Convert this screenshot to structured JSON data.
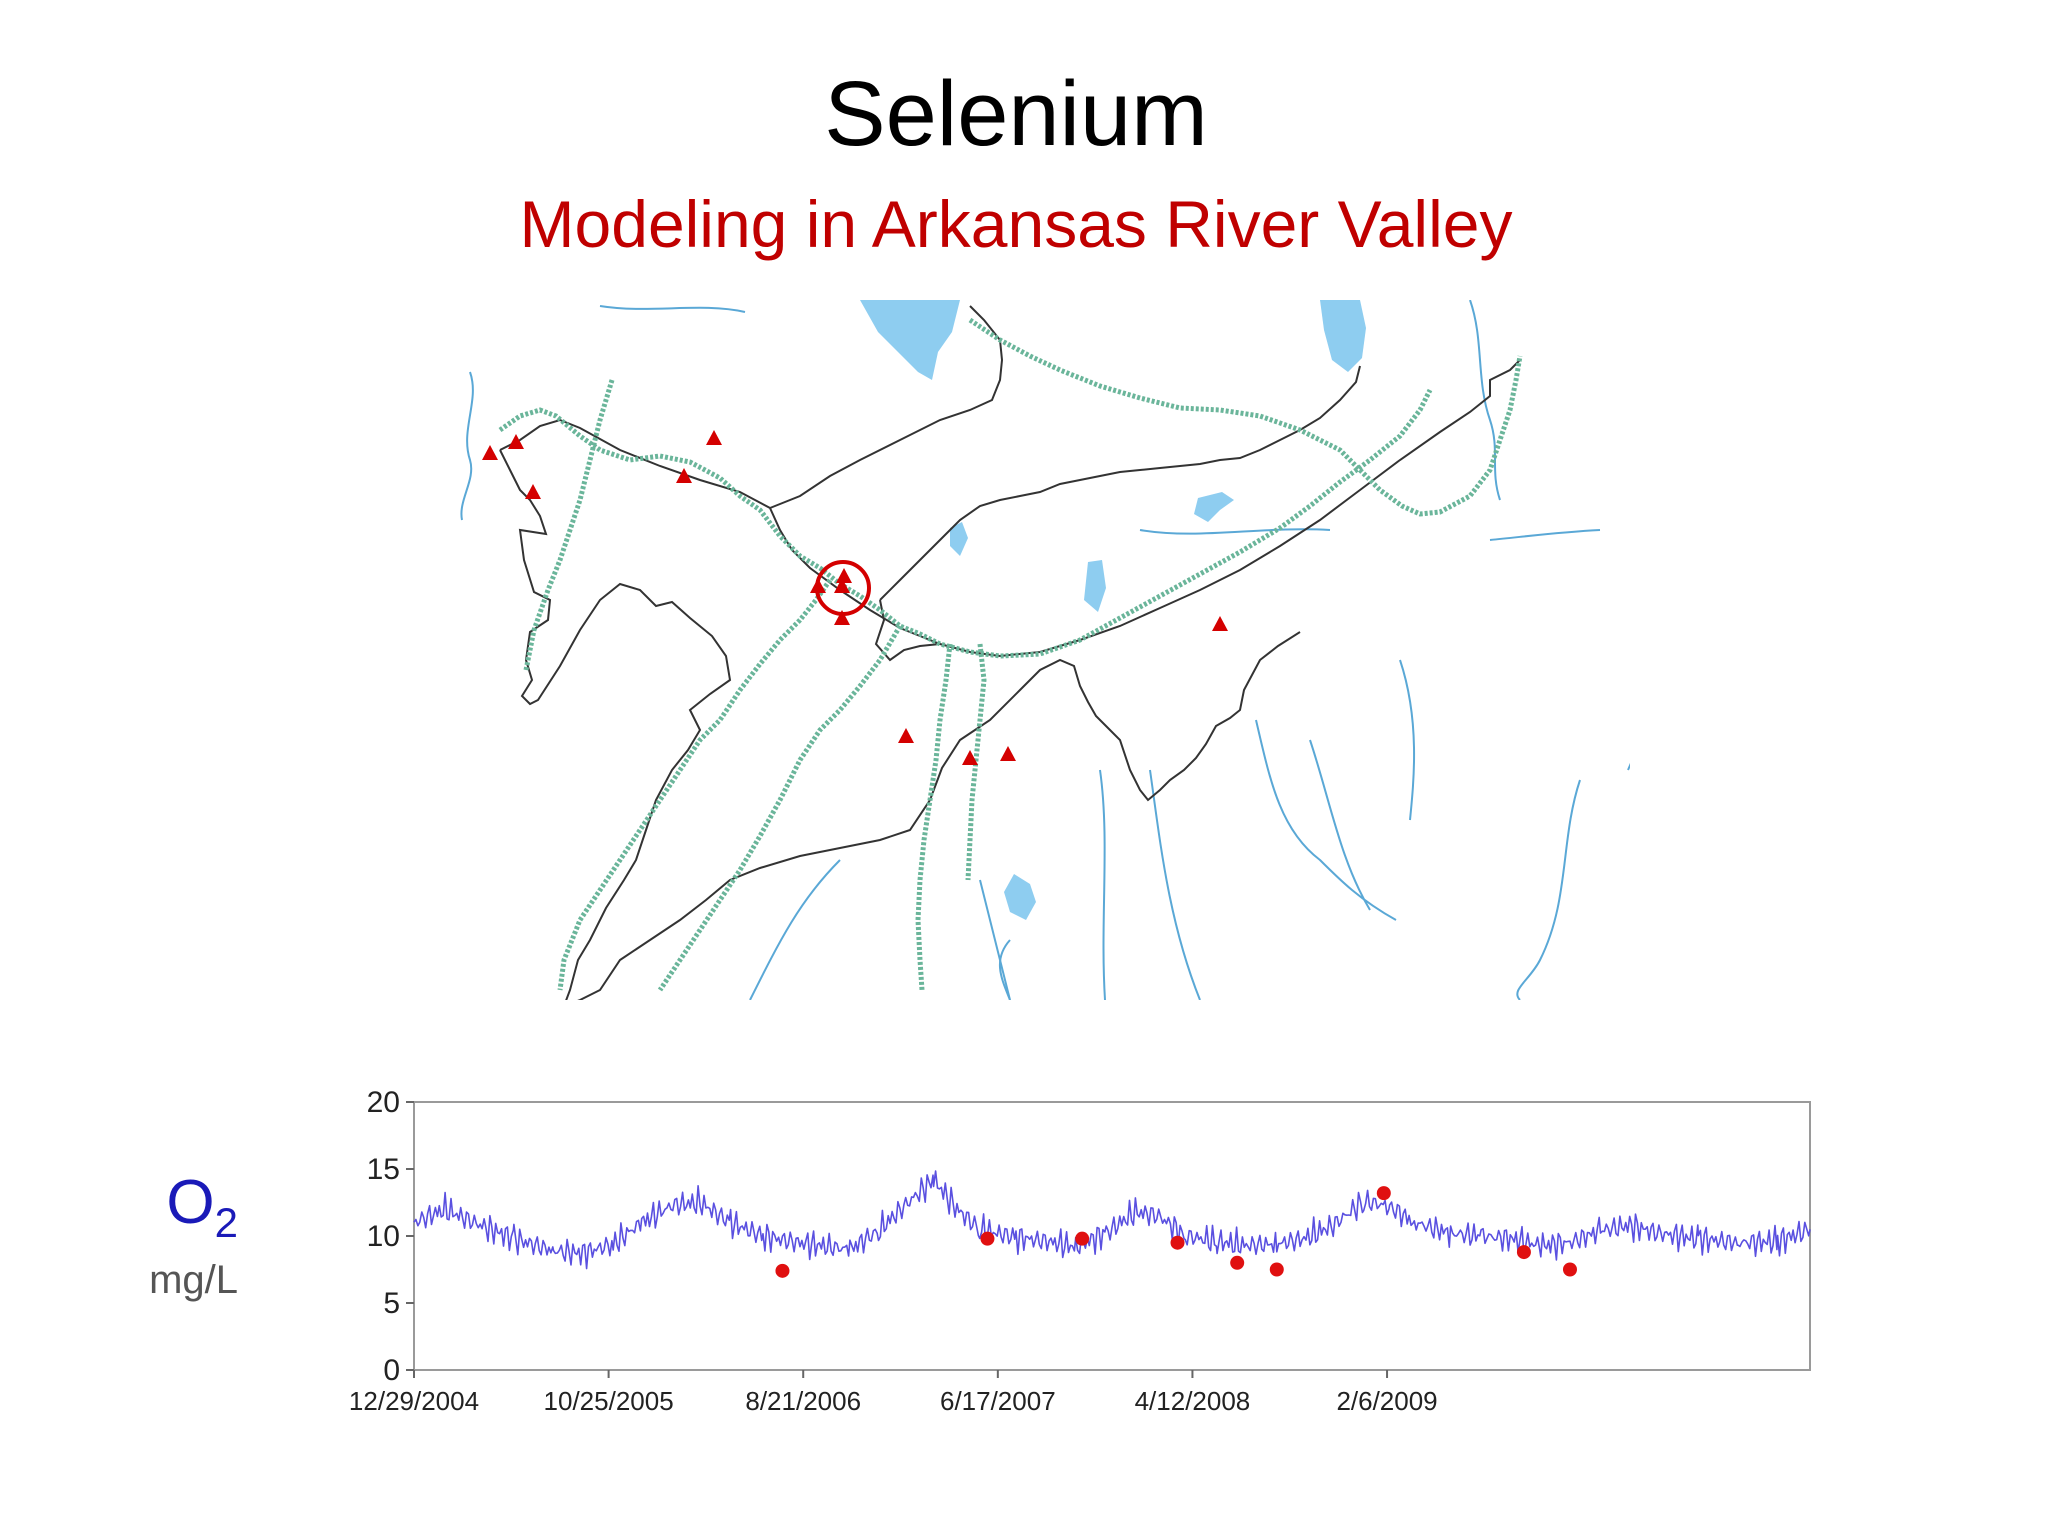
{
  "slide": {
    "title": "Selenium",
    "subtitle": "Modeling in Arkansas River Valley",
    "subtitle_color": "#c00000",
    "o2_main": "O",
    "o2_sub": "2",
    "o2_color": "#1a1ab8",
    "unit": "mg/L"
  },
  "map": {
    "river_color": "#5aa8d6",
    "lake_color": "#8ecdf0",
    "boundary_color": "#333333",
    "model_channel_color": "#6ab59a",
    "marker_color": "#d40000"
  },
  "chart_data": {
    "type": "line",
    "title": "",
    "xlabel": "",
    "ylabel": "",
    "ylim": [
      0,
      20
    ],
    "yticks": [
      0,
      5,
      10,
      15,
      20
    ],
    "xlim": [
      "2004-12-29",
      "2010-11-20"
    ],
    "xticks": [
      {
        "date": "2004-12-29",
        "label": "12/29/2004"
      },
      {
        "date": "2005-10-25",
        "label": "10/25/2005"
      },
      {
        "date": "2006-08-21",
        "label": "8/21/2006"
      },
      {
        "date": "2007-06-17",
        "label": "6/17/2007"
      },
      {
        "date": "2008-04-12",
        "label": "4/12/2008"
      },
      {
        "date": "2009-02-06",
        "label": "2/6/2009"
      }
    ],
    "grid": false,
    "series": [
      {
        "kind": "line",
        "color": "#5a50e0",
        "points": [
          [
            "2004-12-29",
            11.0
          ],
          [
            "2005-02-15",
            12.0
          ],
          [
            "2005-04-01",
            11.0
          ],
          [
            "2005-06-01",
            9.8
          ],
          [
            "2005-08-01",
            8.9
          ],
          [
            "2005-09-15",
            8.7
          ],
          [
            "2005-11-01",
            9.4
          ],
          [
            "2005-12-15",
            11.0
          ],
          [
            "2006-02-01",
            12.3
          ],
          [
            "2006-03-15",
            12.5
          ],
          [
            "2006-05-01",
            11.0
          ],
          [
            "2006-06-20",
            10.0
          ],
          [
            "2006-08-01",
            9.6
          ],
          [
            "2006-09-15",
            9.3
          ],
          [
            "2006-11-01",
            9.0
          ],
          [
            "2006-12-15",
            10.4
          ],
          [
            "2007-02-01",
            12.6
          ],
          [
            "2007-03-10",
            14.2
          ],
          [
            "2007-04-15",
            12.0
          ],
          [
            "2007-05-20",
            10.5
          ],
          [
            "2007-07-15",
            9.9
          ],
          [
            "2007-09-01",
            9.6
          ],
          [
            "2007-10-15",
            9.2
          ],
          [
            "2007-12-01",
            10.2
          ],
          [
            "2008-01-15",
            11.8
          ],
          [
            "2008-02-20",
            11.5
          ],
          [
            "2008-04-01",
            10.0
          ],
          [
            "2008-05-20",
            9.6
          ],
          [
            "2008-07-01",
            9.3
          ],
          [
            "2008-08-20",
            9.4
          ],
          [
            "2008-10-01",
            9.8
          ],
          [
            "2008-11-15",
            10.8
          ],
          [
            "2009-01-01",
            12.6
          ],
          [
            "2009-02-10",
            12.2
          ],
          [
            "2009-03-20",
            11.0
          ],
          [
            "2009-05-15",
            10.2
          ],
          [
            "2009-07-01",
            10.0
          ],
          [
            "2009-08-15",
            9.8
          ],
          [
            "2009-10-01",
            9.3
          ],
          [
            "2009-11-15",
            9.5
          ],
          [
            "2010-01-01",
            10.4
          ],
          [
            "2010-02-15",
            10.8
          ],
          [
            "2010-04-01",
            10.2
          ],
          [
            "2010-06-01",
            9.8
          ],
          [
            "2010-08-01",
            9.5
          ],
          [
            "2010-10-01",
            9.6
          ],
          [
            "2010-11-20",
            10.5
          ]
        ]
      },
      {
        "kind": "scatter",
        "color": "#e01010",
        "points": [
          [
            "2006-07-20",
            7.4
          ],
          [
            "2007-06-01",
            9.8
          ],
          [
            "2007-10-25",
            9.8
          ],
          [
            "2008-03-20",
            9.5
          ],
          [
            "2008-06-20",
            8.0
          ],
          [
            "2008-08-20",
            7.5
          ],
          [
            "2009-02-01",
            13.2
          ],
          [
            "2009-09-05",
            8.8
          ],
          [
            "2009-11-15",
            7.5
          ]
        ]
      }
    ]
  }
}
